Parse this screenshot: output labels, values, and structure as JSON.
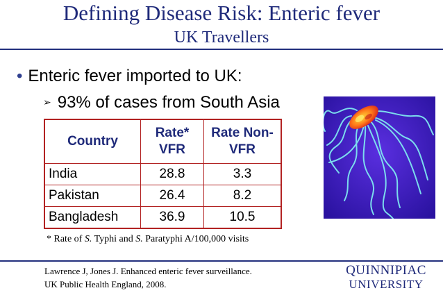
{
  "slide": {
    "title": "Defining Disease Risk: Enteric fever",
    "subtitle": "UK Travellers"
  },
  "bullets": {
    "main": "Enteric fever imported to UK:",
    "sub": "93% of cases from South Asia",
    "main_marker": "•",
    "sub_marker": "➢"
  },
  "table": {
    "headers": {
      "country": "Country",
      "rate_vfr_1": "Rate*",
      "rate_vfr_2": "VFR",
      "rate_non_1": "Rate Non-",
      "rate_non_2": "VFR"
    },
    "rows": [
      {
        "country": "India",
        "rate_vfr": "28.8",
        "rate_non_vfr": "3.3"
      },
      {
        "country": "Pakistan",
        "rate_vfr": "26.4",
        "rate_non_vfr": "8.2"
      },
      {
        "country": "Bangladesh",
        "rate_vfr": "36.9",
        "rate_non_vfr": "10.5"
      }
    ]
  },
  "footnote": {
    "prefix": "* Rate of ",
    "s1": "S.",
    "mid1": " Typhi and ",
    "s2": "S.",
    "mid2": " Paratyphi A/100,000 visits"
  },
  "reference": {
    "line1": "Lawrence J, Jones J. Enhanced enteric fever surveillance.",
    "line2": "UK Public Health England, 2008."
  },
  "logo": {
    "line1": "QUINNIPIAC",
    "line2": "UNIVERSITY"
  },
  "colors": {
    "title": "#1f2a7a",
    "table_border": "#b22222",
    "photo_background": "#3d1dbd"
  },
  "image": {
    "subject": "salmonella-bacterium-micrograph"
  }
}
